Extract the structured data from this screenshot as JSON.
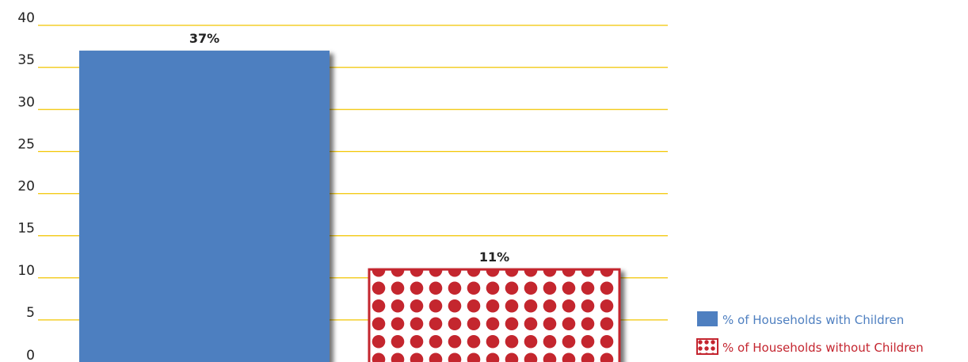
{
  "chart_data": {
    "type": "bar",
    "categories": [
      "% of Households with Children",
      "% of Households without Children"
    ],
    "values": [
      37,
      11
    ],
    "data_labels": [
      "37%",
      "11%"
    ],
    "ylim": [
      0,
      40
    ],
    "yticks": [
      0,
      5,
      10,
      15,
      20,
      25,
      30,
      35,
      40
    ],
    "grid": true,
    "legend_position": "bottom-right",
    "legend": [
      {
        "label": "% of Households with Children",
        "fill": "solid"
      },
      {
        "label": "% of Households without Children",
        "fill": "polka-dot"
      }
    ],
    "colors": {
      "bar1": "#4e7fc0",
      "bar2_base": "#ffffff",
      "bar2_dots": "#c4252f",
      "grid": "#f2c500",
      "legend1_text": "#4e7fc0",
      "legend2_text": "#c4252f"
    }
  }
}
